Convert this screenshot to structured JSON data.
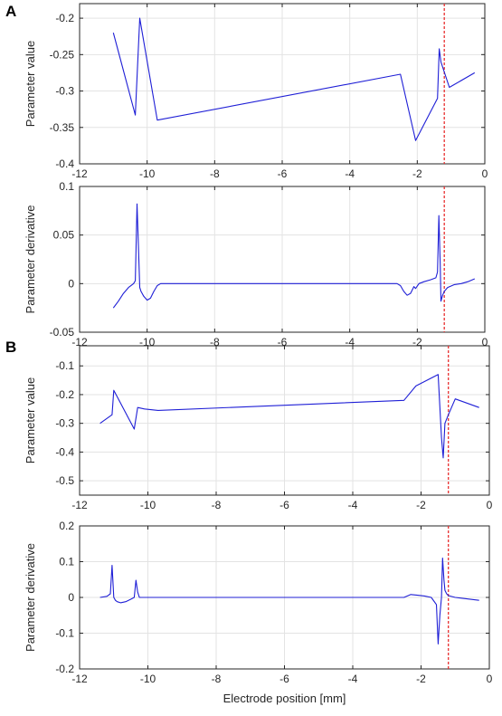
{
  "panel_labels": [
    "A",
    "B"
  ],
  "chart_data": [
    {
      "panel": "A",
      "type": "line",
      "ylabel": "Parameter value",
      "xlabel": "",
      "xlim": [
        -12,
        0
      ],
      "ylim": [
        -0.4,
        -0.18
      ],
      "xticks": [
        -12,
        -10,
        -8,
        -6,
        -4,
        -2,
        0
      ],
      "yticks": [
        -0.4,
        -0.35,
        -0.3,
        -0.25,
        -0.2
      ],
      "ytick_labels": [
        "-0.4",
        "-0.35",
        "-0.3",
        "-0.25",
        "-0.2"
      ],
      "grid": true,
      "colors": {
        "series": "#1f1fd6",
        "marker": "#e83030"
      },
      "marker_x": -1.2,
      "x": [
        -11.0,
        -10.35,
        -10.22,
        -9.7,
        -2.5,
        -2.05,
        -1.4,
        -1.35,
        -1.3,
        -1.05,
        -0.3
      ],
      "y": [
        -0.22,
        -0.333,
        -0.2,
        -0.34,
        -0.277,
        -0.368,
        -0.31,
        -0.242,
        -0.26,
        -0.295,
        -0.275
      ]
    },
    {
      "panel": "A",
      "type": "line",
      "ylabel": "Parameter derivative",
      "xlabel": "",
      "xlim": [
        -12,
        0
      ],
      "ylim": [
        -0.05,
        0.1
      ],
      "xticks": [
        -12,
        -10,
        -8,
        -6,
        -4,
        -2,
        0
      ],
      "yticks": [
        -0.05,
        0,
        0.05,
        0.1
      ],
      "ytick_labels": [
        "-0.05",
        "0",
        "0.05",
        "0.1"
      ],
      "grid": true,
      "colors": {
        "series": "#1f1fd6",
        "marker": "#e83030"
      },
      "marker_x": -1.2,
      "x": [
        -11.0,
        -10.85,
        -10.7,
        -10.55,
        -10.4,
        -10.35,
        -10.3,
        -10.26,
        -10.22,
        -10.18,
        -10.1,
        -10.0,
        -9.9,
        -9.8,
        -9.7,
        -9.6,
        -9.5,
        -2.6,
        -2.5,
        -2.4,
        -2.3,
        -2.2,
        -2.1,
        -2.05,
        -1.95,
        -1.8,
        -1.6,
        -1.45,
        -1.4,
        -1.36,
        -1.32,
        -1.3,
        -1.25,
        -1.2,
        -1.1,
        -0.9,
        -0.7,
        -0.5,
        -0.3
      ],
      "y": [
        -0.025,
        -0.018,
        -0.01,
        -0.004,
        0.0,
        0.003,
        0.082,
        0.04,
        -0.004,
        -0.008,
        -0.013,
        -0.017,
        -0.015,
        -0.008,
        -0.002,
        0.0,
        0.0,
        0.0,
        -0.002,
        -0.008,
        -0.012,
        -0.01,
        -0.003,
        -0.005,
        0.0,
        0.002,
        0.004,
        0.006,
        0.012,
        0.07,
        0.02,
        -0.018,
        -0.012,
        -0.008,
        -0.004,
        -0.001,
        0.0,
        0.002,
        0.005
      ]
    },
    {
      "panel": "B",
      "type": "line",
      "ylabel": "Parameter value",
      "xlabel": "",
      "xlim": [
        -12,
        0
      ],
      "ylim": [
        -0.55,
        -0.03
      ],
      "xticks": [
        -12,
        -10,
        -8,
        -6,
        -4,
        -2,
        0
      ],
      "yticks": [
        -0.5,
        -0.4,
        -0.3,
        -0.2,
        -0.1
      ],
      "ytick_labels": [
        "-0.5",
        "-0.4",
        "-0.3",
        "-0.2",
        "-0.1"
      ],
      "grid": true,
      "colors": {
        "series": "#1f1fd6",
        "marker": "#e83030"
      },
      "marker_x": -1.2,
      "x": [
        -11.4,
        -11.05,
        -11.0,
        -10.4,
        -10.3,
        -10.1,
        -9.7,
        -2.5,
        -2.15,
        -1.5,
        -1.4,
        -1.35,
        -1.3,
        -1.2,
        -1.0,
        -0.3
      ],
      "y": [
        -0.3,
        -0.27,
        -0.185,
        -0.32,
        -0.245,
        -0.25,
        -0.255,
        -0.22,
        -0.17,
        -0.13,
        -0.35,
        -0.42,
        -0.3,
        -0.27,
        -0.215,
        -0.245
      ]
    },
    {
      "panel": "B",
      "type": "line",
      "ylabel": "Parameter derivative",
      "xlabel": "Electrode position [mm]",
      "xlim": [
        -12,
        0
      ],
      "ylim": [
        -0.2,
        0.2
      ],
      "xticks": [
        -12,
        -10,
        -8,
        -6,
        -4,
        -2,
        0
      ],
      "yticks": [
        -0.2,
        -0.1,
        0,
        0.1,
        0.2
      ],
      "ytick_labels": [
        "-0.2",
        "-0.1",
        "0",
        "0.1",
        "0.2"
      ],
      "grid": true,
      "colors": {
        "series": "#1f1fd6",
        "marker": "#e83030"
      },
      "marker_x": -1.2,
      "x": [
        -11.4,
        -11.2,
        -11.1,
        -11.05,
        -11.0,
        -10.95,
        -10.9,
        -10.8,
        -10.65,
        -10.5,
        -10.4,
        -10.35,
        -10.3,
        -10.25,
        -10.2,
        -10.0,
        -9.7,
        -2.5,
        -2.3,
        -2.1,
        -1.9,
        -1.7,
        -1.55,
        -1.5,
        -1.45,
        -1.4,
        -1.37,
        -1.33,
        -1.3,
        -1.25,
        -1.2,
        -1.0,
        -0.3
      ],
      "y": [
        0.0,
        0.003,
        0.01,
        0.09,
        0.0,
        -0.008,
        -0.012,
        -0.015,
        -0.012,
        -0.005,
        0.0,
        0.048,
        0.015,
        0.0,
        0.0,
        0.0,
        0.0,
        0.0,
        0.008,
        0.006,
        0.004,
        0.0,
        -0.02,
        -0.13,
        -0.05,
        0.0,
        0.11,
        0.05,
        0.02,
        0.01,
        0.005,
        0.0,
        -0.008
      ]
    }
  ]
}
